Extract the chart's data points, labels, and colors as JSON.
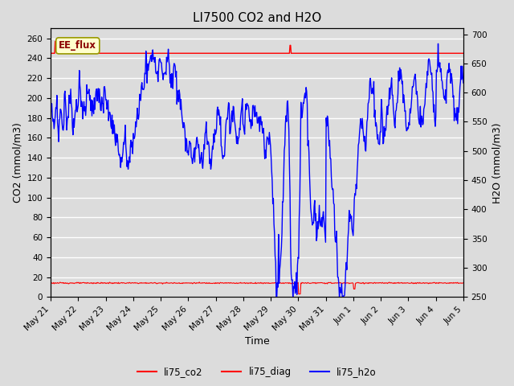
{
  "title": "LI7500 CO2 and H2O",
  "xlabel": "Time",
  "ylabel_left": "CO2 (mmol/m3)",
  "ylabel_right": "H2O (mmol/m3)",
  "ylim_left": [
    0,
    270
  ],
  "ylim_right": [
    250,
    710
  ],
  "bg_color": "#dcdcdc",
  "grid_color": "#f0f0f0",
  "annotation_text": "EE_flux",
  "annotation_bg": "#ffffcc",
  "annotation_border": "#cccc00",
  "co2_color": "red",
  "diag_color": "red",
  "h2o_color": "blue",
  "title_fontsize": 11,
  "axis_fontsize": 9,
  "tick_fontsize": 7.5,
  "x_tick_labels": [
    "May 21",
    "May 22",
    "May 23",
    "May 24",
    "May 25",
    "May 26",
    "May 27",
    "May 28",
    "May 29",
    "May 30",
    "May 31",
    "Jun 1",
    "Jun 2",
    "Jun 3",
    "Jun 4",
    "Jun 5"
  ],
  "yticks_left": [
    0,
    20,
    40,
    60,
    80,
    100,
    120,
    140,
    160,
    180,
    200,
    220,
    240,
    260
  ],
  "yticks_right": [
    250,
    300,
    350,
    400,
    450,
    500,
    550,
    600,
    650,
    700
  ],
  "co2_base": 245.0,
  "diag_base": 14.0,
  "h2o_scale_min": 250,
  "h2o_scale_max": 710
}
